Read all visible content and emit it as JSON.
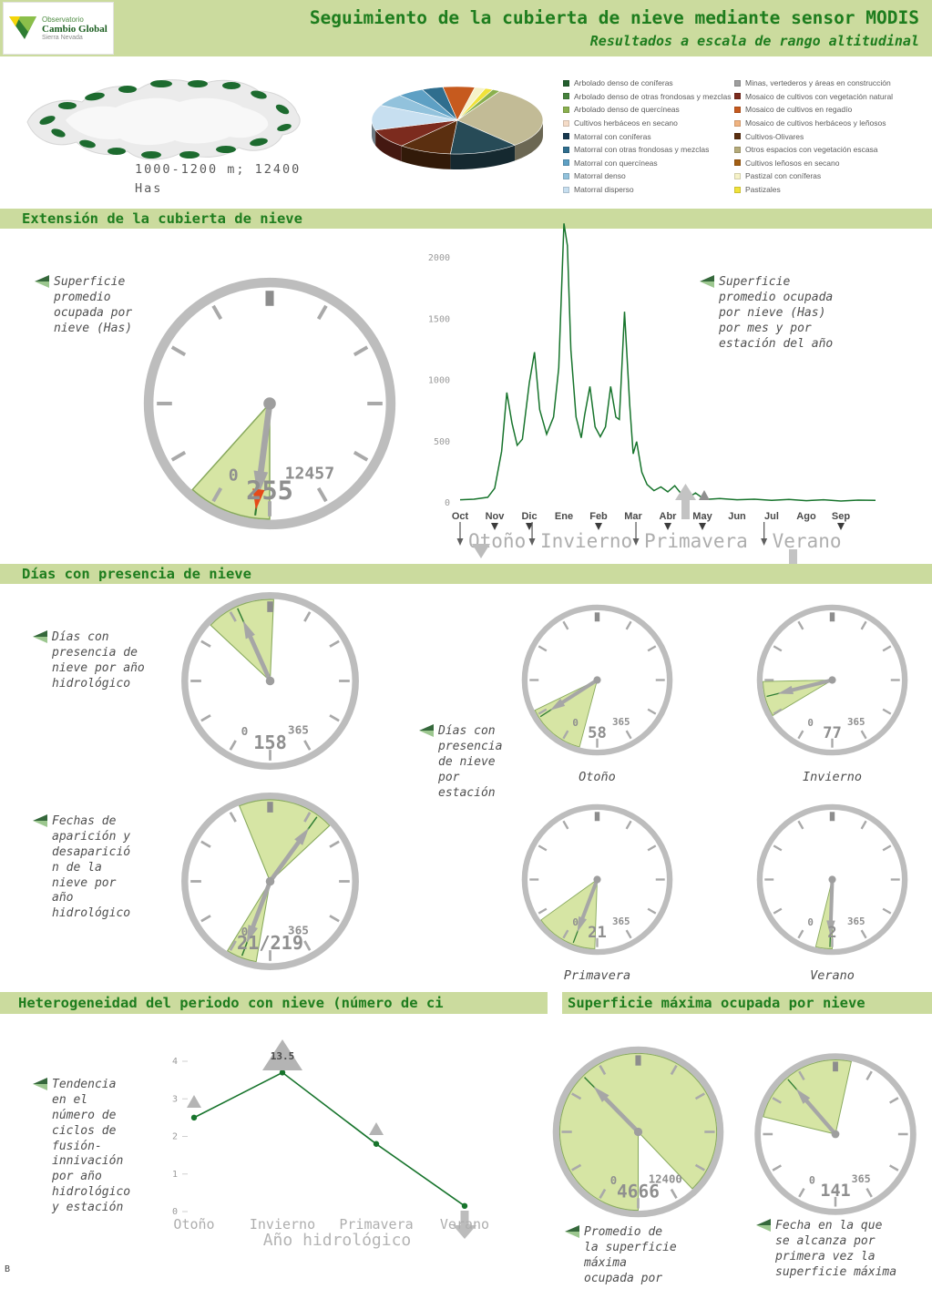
{
  "header": {
    "title": "Seguimiento de la cubierta de nieve mediante sensor MODIS",
    "subtitle": "Resultados a escala de rango altitudinal",
    "logo": {
      "line1": "Observatorio",
      "line2": "Cambio Global",
      "line3": "Sierra Nevada"
    }
  },
  "map_panel": {
    "caption": "1000-1200 m; 12400",
    "caption_unit": "Has"
  },
  "legend": {
    "columns": [
      [
        {
          "label": "Arbolado denso de coníferas",
          "color": "#225e2d"
        },
        {
          "label": "Arbolado denso de otras frondosas y mezclas",
          "color": "#46823c"
        },
        {
          "label": "Arbolado denso de quercíneas",
          "color": "#8ab04e"
        },
        {
          "label": "Cultivos herbáceos en secano",
          "color": "#f5dcc8"
        },
        {
          "label": "Matorral con coníferas",
          "color": "#17394f"
        },
        {
          "label": "Matorral con otras frondosas y mezclas",
          "color": "#2f6e8e"
        },
        {
          "label": "Matorral con quercíneas",
          "color": "#5ea0c4"
        },
        {
          "label": "Matorral denso",
          "color": "#92c2dc"
        },
        {
          "label": "Matorral disperso",
          "color": "#c7dff0"
        }
      ],
      [
        {
          "label": "Minas, vertederos y áreas en construcción",
          "color": "#9e9e9e"
        },
        {
          "label": "Mosaico de cultivos con vegetación natural",
          "color": "#7c2b1e"
        },
        {
          "label": "Mosaico de cultivos en regadío",
          "color": "#c65a1e"
        },
        {
          "label": "Mosaico de cultivos herbáceos y leñosos",
          "color": "#f0b380"
        },
        {
          "label": "Cultivos-Olivares",
          "color": "#5b2f10"
        },
        {
          "label": "Otros espacios con vegetación escasa",
          "color": "#b5ab7a"
        },
        {
          "label": "Cultivos leñosos en secano",
          "color": "#a35f14"
        },
        {
          "label": "Pastizal con coníferas",
          "color": "#f6f2c8"
        },
        {
          "label": "Pastizales",
          "color": "#f0e23a"
        }
      ]
    ]
  },
  "section_titles": {
    "extension": "Extensión de la cubierta de nieve",
    "dias": "Días con presencia de nieve",
    "heterogeneidad": "Heterogeneidad del periodo con nieve (número de ci",
    "superficie_maxima": "Superficie máxima ocupada por nieve"
  },
  "callouts": {
    "gauge_superficie": "Superficie\npromedio\nocupada por\nnieve (Has)",
    "serie_mensual": "Superficie\npromedio ocupada\npor nieve (Has)\npor mes y por\nestación del año",
    "dias_anio": "Días con\npresencia de\nnieve por año\nhidrológico",
    "dias_estacion": "Días con\npresencia\nde nieve\npor\nestación",
    "fechas": "Fechas de\naparición y\ndesaparició\nn de la\nnieve por\naño\nhidrológico",
    "tendencia": "Tendencia\nen el\nnúmero de\nciclos de\nfusión-\ninnivación\npor año\nhidrológico\ny estación",
    "promedio_max": "Promedio de\nla superficie\nmáxima\nocupada por",
    "fecha_max": "Fecha en la que\nse alcanza por\nprimera vez la\nsuperficie máxima"
  },
  "page_footer": "B",
  "chart_data": [
    {
      "id": "landcover_pie",
      "type": "pie",
      "values_are": "percent",
      "slices": [
        {
          "label": "Otros espacios con vegetación escasa",
          "color": "#c2bb96",
          "value": 30
        },
        {
          "label": "Matorral con coníferas",
          "color": "#274b57",
          "value": 13
        },
        {
          "label": "Cultivos-Olivares",
          "color": "#5b2f10",
          "value": 10
        },
        {
          "label": "Mosaico de cultivos con vegetación natural",
          "color": "#7c2b1e",
          "value": 9
        },
        {
          "label": "Matorral disperso",
          "color": "#c7dff0",
          "value": 12
        },
        {
          "label": "Matorral denso",
          "color": "#92c2dc",
          "value": 6
        },
        {
          "label": "Matorral con quercíneas",
          "color": "#5ea0c4",
          "value": 5
        },
        {
          "label": "Matorral con otras frondosas y mezclas",
          "color": "#2f6e8e",
          "value": 4
        },
        {
          "label": "Mosaico de cultivos en regadío",
          "color": "#c65a1e",
          "value": 6
        },
        {
          "label": "Pastizal con coníferas",
          "color": "#f6f2c8",
          "value": 2
        },
        {
          "label": "Pastizales",
          "color": "#f0e23a",
          "value": 1.5
        },
        {
          "label": "Arbolado denso de quercíneas",
          "color": "#8ab04e",
          "value": 1.5
        }
      ]
    },
    {
      "id": "gauge_superficie_promedio",
      "type": "gauge",
      "min": 0,
      "max": 12457,
      "value": 255,
      "min_label": "0",
      "max_label": "12457",
      "value_label": "255",
      "wedges": [
        [
          0,
          1450
        ]
      ],
      "red_marker": 255
    },
    {
      "id": "serie_mensual",
      "type": "line",
      "months": [
        "Oct",
        "Nov",
        "Dic",
        "Ene",
        "Feb",
        "Mar",
        "Abr",
        "May",
        "Jun",
        "Jul",
        "Ago",
        "Sep"
      ],
      "month_markers": [
        "Nov",
        "Dic",
        "Feb",
        "Abr",
        "May",
        "Sep"
      ],
      "seasons": [
        "Otoño",
        "Invierno",
        "Primavera",
        "Verano"
      ],
      "y_ticks": [
        0,
        500,
        1000,
        1500,
        2000
      ],
      "ylim": [
        0,
        2300
      ],
      "x": [
        0,
        0.4,
        0.8,
        1.0,
        1.2,
        1.35,
        1.5,
        1.65,
        1.8,
        2.0,
        2.15,
        2.3,
        2.5,
        2.7,
        2.85,
        3.0,
        3.1,
        3.2,
        3.35,
        3.5,
        3.6,
        3.75,
        3.9,
        4.05,
        4.2,
        4.35,
        4.5,
        4.6,
        4.75,
        4.9,
        5.0,
        5.1,
        5.25,
        5.4,
        5.6,
        5.8,
        6.0,
        6.2,
        6.4,
        6.6,
        6.8,
        7.0,
        7.2,
        7.5,
        8.0,
        8.5,
        9.0,
        9.5,
        10.0,
        10.5,
        11.0,
        11.5,
        12.0
      ],
      "y": [
        25,
        30,
        45,
        120,
        420,
        900,
        650,
        470,
        520,
        980,
        1230,
        760,
        560,
        700,
        1100,
        2280,
        2100,
        1250,
        700,
        530,
        720,
        950,
        620,
        540,
        620,
        950,
        700,
        680,
        1560,
        800,
        400,
        500,
        250,
        150,
        100,
        130,
        90,
        140,
        70,
        45,
        80,
        40,
        30,
        35,
        25,
        30,
        20,
        28,
        18,
        25,
        15,
        22,
        20
      ]
    },
    {
      "id": "gauge_dias_anio",
      "type": "gauge",
      "min": 0,
      "max": 365,
      "value": 158,
      "min_label": "0",
      "max_label": "365",
      "value_label": "158",
      "wedges": [
        [
          135,
          185
        ]
      ]
    },
    {
      "id": "gauge_fechas",
      "type": "gauge",
      "min": 0,
      "max": 365,
      "values": [
        21,
        219
      ],
      "min_label": "0",
      "max_label": "365",
      "value_label": "21/219",
      "wedges": [
        [
          10,
          32
        ],
        [
          160,
          230
        ]
      ]
    },
    {
      "id": "gauge_otono",
      "type": "gauge",
      "caption": "Otoño",
      "min": 0,
      "max": 365,
      "value": 58,
      "min_label": "0",
      "max_label": "365",
      "value_label": "58",
      "wedges": [
        [
          15,
          65
        ]
      ]
    },
    {
      "id": "gauge_invierno",
      "type": "gauge",
      "caption": "Invierno",
      "min": 0,
      "max": 365,
      "value": 77,
      "min_label": "0",
      "max_label": "365",
      "value_label": "77",
      "wedges": [
        [
          60,
          90
        ]
      ]
    },
    {
      "id": "gauge_primavera",
      "type": "gauge",
      "caption": "Primavera",
      "min": 0,
      "max": 365,
      "value": 21,
      "min_label": "0",
      "max_label": "365",
      "value_label": "21",
      "wedges": [
        [
          2,
          55
        ]
      ]
    },
    {
      "id": "gauge_verano",
      "type": "gauge",
      "caption": "Verano",
      "min": 0,
      "max": 365,
      "value": 2,
      "min_label": "0",
      "max_label": "365",
      "value_label": "2",
      "wedges": [
        [
          0,
          14
        ]
      ]
    },
    {
      "id": "trend_ciclos",
      "type": "line",
      "categories": [
        "Otoño",
        "Invierno",
        "Primavera",
        "Verano"
      ],
      "values": [
        2.5,
        3.7,
        1.8,
        0.15
      ],
      "y_ticks": [
        0,
        1,
        2,
        3,
        4
      ],
      "ylim": [
        0,
        4.3
      ],
      "annotation_value": "13.5",
      "xlabel": "Año hidrológico",
      "markers": [
        {
          "category": "Otoño",
          "marker": "triangle-up"
        },
        {
          "category": "Invierno",
          "marker": "triangle-up-large",
          "label": "13.5"
        },
        {
          "category": "Primavera",
          "marker": "triangle-up"
        },
        {
          "category": "Verano",
          "marker": "arrow-down"
        }
      ]
    },
    {
      "id": "gauge_sup_max",
      "type": "gauge",
      "min": 0,
      "max": 12400,
      "value": 4666,
      "min_label": "0",
      "max_label": "12400",
      "value_label": "4666",
      "wedges": [
        [
          0,
          10900
        ]
      ]
    },
    {
      "id": "gauge_fecha_max",
      "type": "gauge",
      "min": 0,
      "max": 365,
      "value": 141,
      "min_label": "0",
      "max_label": "365",
      "value_label": "141",
      "wedges": [
        [
          105,
          195
        ]
      ]
    }
  ]
}
